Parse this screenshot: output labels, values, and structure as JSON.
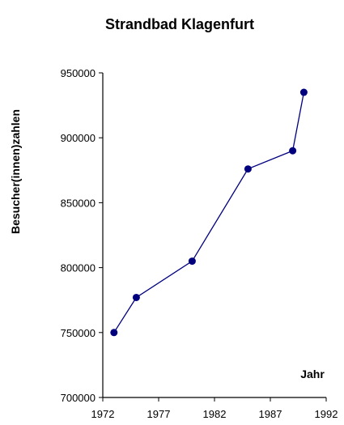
{
  "chart_data": {
    "type": "line",
    "title": "Strandbad Klagenfurt",
    "xlabel": "Jahr",
    "ylabel": "Besucher(innen)zahlen",
    "xlim": [
      1972,
      1992
    ],
    "ylim": [
      700000,
      950000
    ],
    "x_ticks": [
      1972,
      1977,
      1982,
      1987,
      1992
    ],
    "y_ticks": [
      700000,
      750000,
      800000,
      850000,
      900000,
      950000
    ],
    "x_tick_labels": [
      "1972",
      "1977",
      "1982",
      "1987",
      "1992"
    ],
    "y_tick_labels": [
      "700000",
      "750000",
      "800000",
      "850000",
      "900000",
      "950000"
    ],
    "grid": false,
    "series": [
      {
        "color": "#00007f",
        "x": [
          1973,
          1975,
          1980,
          1985,
          1989,
          1990
        ],
        "y": [
          750000,
          777000,
          805000,
          876000,
          890000,
          935000
        ]
      }
    ]
  }
}
